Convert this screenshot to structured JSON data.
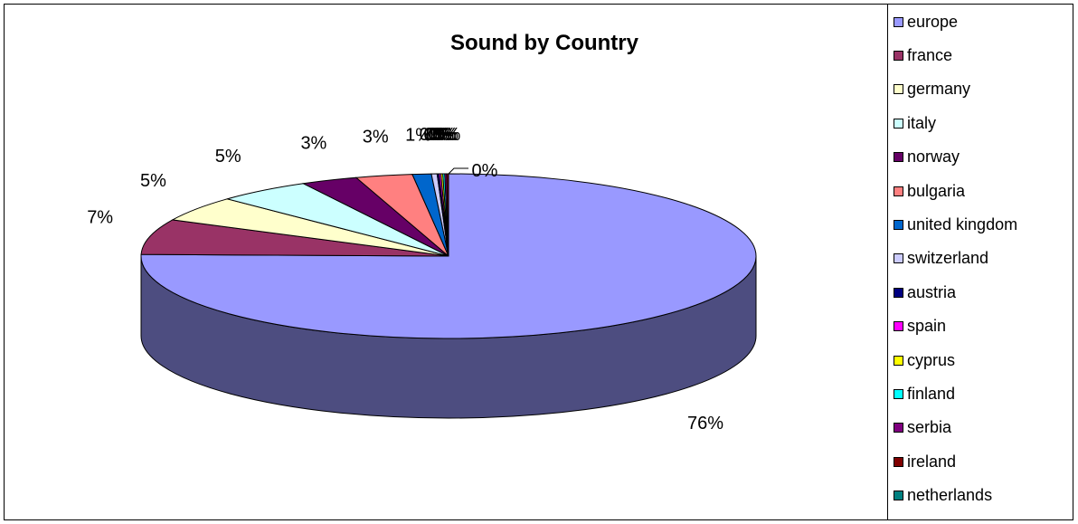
{
  "chart_data": {
    "type": "pie",
    "title": "Sound by Country",
    "three_d": true,
    "legend_position": "right",
    "slices": [
      {
        "label": "europe",
        "value": 76,
        "display": "76%",
        "color": "#9999FF"
      },
      {
        "label": "france",
        "value": 7,
        "display": "7%",
        "color": "#993366"
      },
      {
        "label": "germany",
        "value": 5,
        "display": "5%",
        "color": "#FFFFCC"
      },
      {
        "label": "italy",
        "value": 5,
        "display": "5%",
        "color": "#CCFFFF"
      },
      {
        "label": "norway",
        "value": 3,
        "display": "3%",
        "color": "#660066"
      },
      {
        "label": "bulgaria",
        "value": 3,
        "display": "3%",
        "color": "#FF8080"
      },
      {
        "label": "united kingdom",
        "value": 1,
        "display": "1%",
        "color": "#0066CC"
      },
      {
        "label": "switzerland",
        "value": 0.3,
        "display": "0%",
        "color": "#CCCCFF"
      },
      {
        "label": "austria",
        "value": 0.1,
        "display": "0%",
        "color": "#000080"
      },
      {
        "label": "spain",
        "value": 0.1,
        "display": "0%",
        "color": "#FF00FF"
      },
      {
        "label": "cyprus",
        "value": 0.1,
        "display": "0%",
        "color": "#FFFF00"
      },
      {
        "label": "finland",
        "value": 0.1,
        "display": "0%",
        "color": "#00FFFF"
      },
      {
        "label": "serbia",
        "value": 0.1,
        "display": "0%",
        "color": "#800080"
      },
      {
        "label": "ireland",
        "value": 0.1,
        "display": "0%",
        "color": "#800000"
      },
      {
        "label": "netherlands",
        "value": 0.0,
        "display": "0%",
        "color": "#008080"
      }
    ]
  }
}
